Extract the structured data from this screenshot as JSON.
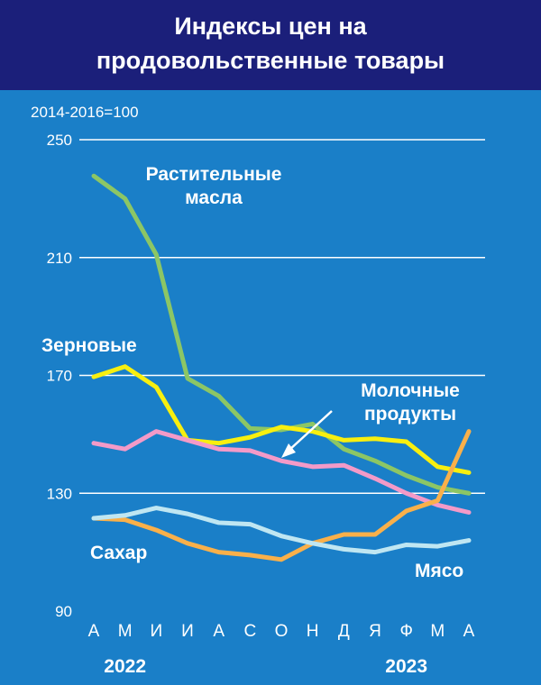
{
  "header": {
    "title_line1": "Индексы цен на",
    "title_line2": "продовольственные товары"
  },
  "chart_data": {
    "type": "line",
    "base_note": "2014-2016=100",
    "categories": [
      "А",
      "М",
      "И",
      "И",
      "А",
      "С",
      "О",
      "Н",
      "Д",
      "Я",
      "Ф",
      "М",
      "А"
    ],
    "years": [
      {
        "label": "2022",
        "index": 1
      },
      {
        "label": "2023",
        "index": 10
      }
    ],
    "ylim": [
      90,
      250
    ],
    "yticks": [
      90,
      130,
      170,
      210,
      250
    ],
    "grid": true,
    "series": [
      {
        "name": "Растительные масла",
        "label_lines": [
          "Растительные",
          "масла"
        ],
        "color": "#8cc665",
        "x": [
          0,
          1,
          2,
          3,
          4,
          5,
          6,
          7,
          8,
          9,
          10,
          11,
          12
        ],
        "values": [
          237.7,
          230,
          211,
          169,
          163,
          152,
          151.5,
          153.5,
          145,
          141,
          136,
          132,
          130
        ]
      },
      {
        "name": "Зерновые",
        "label_lines": [
          "Зерновые"
        ],
        "color": "#f8ef0f",
        "x": [
          0,
          1,
          2,
          3,
          4,
          5,
          6,
          7,
          8,
          9,
          10,
          11,
          12
        ],
        "values": [
          169.5,
          173,
          166,
          148,
          147,
          149,
          152.5,
          151,
          148,
          148.5,
          147.5,
          139,
          137
        ]
      },
      {
        "name": "Молочные продукты",
        "label_lines": [
          "Молочные",
          "продукты"
        ],
        "color": "#f39ac8",
        "x": [
          0,
          1,
          2,
          3,
          4,
          5,
          6,
          7,
          8,
          9,
          10,
          11,
          12
        ],
        "values": [
          147,
          145,
          151,
          148,
          145,
          144.5,
          141,
          139,
          139.5,
          135,
          130,
          126,
          123.5
        ]
      },
      {
        "name": "Сахар",
        "label_lines": [
          "Сахар"
        ],
        "color": "#f9b04a",
        "x": [
          0,
          1,
          2,
          3,
          4,
          5,
          6,
          7,
          8,
          9,
          10,
          11,
          12
        ],
        "values": [
          121.5,
          121,
          117.5,
          113,
          110,
          109,
          107.5,
          113,
          116,
          116,
          124,
          127.5,
          151
        ]
      },
      {
        "name": "Мясо",
        "label_lines": [
          "Мясо"
        ],
        "color": "#bfe6f2",
        "x": [
          0,
          1,
          2,
          3,
          4,
          5,
          6,
          7,
          8,
          9,
          10,
          11,
          12
        ],
        "values": [
          121.5,
          122.5,
          125,
          123,
          120,
          119.5,
          115.5,
          113,
          111,
          110,
          112.5,
          112,
          114
        ]
      }
    ]
  }
}
